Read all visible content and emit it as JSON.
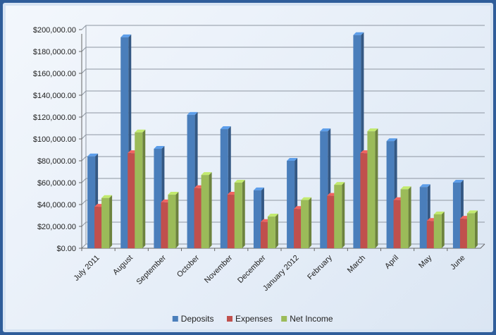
{
  "chart_data": {
    "type": "bar",
    "categories": [
      "July 2011",
      "August",
      "September",
      "October",
      "November",
      "December",
      "January 2012",
      "February",
      "March",
      "April",
      "May",
      "June"
    ],
    "series": [
      {
        "name": "Deposits",
        "color": "#4a7ebb",
        "values": [
          84000,
          193000,
          91000,
          122000,
          109000,
          53000,
          80000,
          107000,
          195000,
          98000,
          56000,
          60000
        ]
      },
      {
        "name": "Expenses",
        "color": "#c0504d",
        "values": [
          38000,
          87000,
          42000,
          55000,
          49000,
          24000,
          36000,
          48000,
          87000,
          44000,
          25000,
          27000
        ]
      },
      {
        "name": "Net Income",
        "color": "#9bbb59",
        "values": [
          46000,
          106000,
          49000,
          67000,
          60000,
          29000,
          44000,
          58000,
          107000,
          54000,
          31000,
          32000
        ]
      }
    ],
    "yticks": [
      "$0.00",
      "$20,000.00",
      "$40,000.00",
      "$60,000.00",
      "$80,000.00",
      "$100,000.00",
      "$120,000.00",
      "$140,000.00",
      "$160,000.00",
      "$180,000.00",
      "$200,000.00"
    ],
    "ylim": [
      0,
      200000
    ],
    "grid": true,
    "legend_position": "bottom"
  }
}
